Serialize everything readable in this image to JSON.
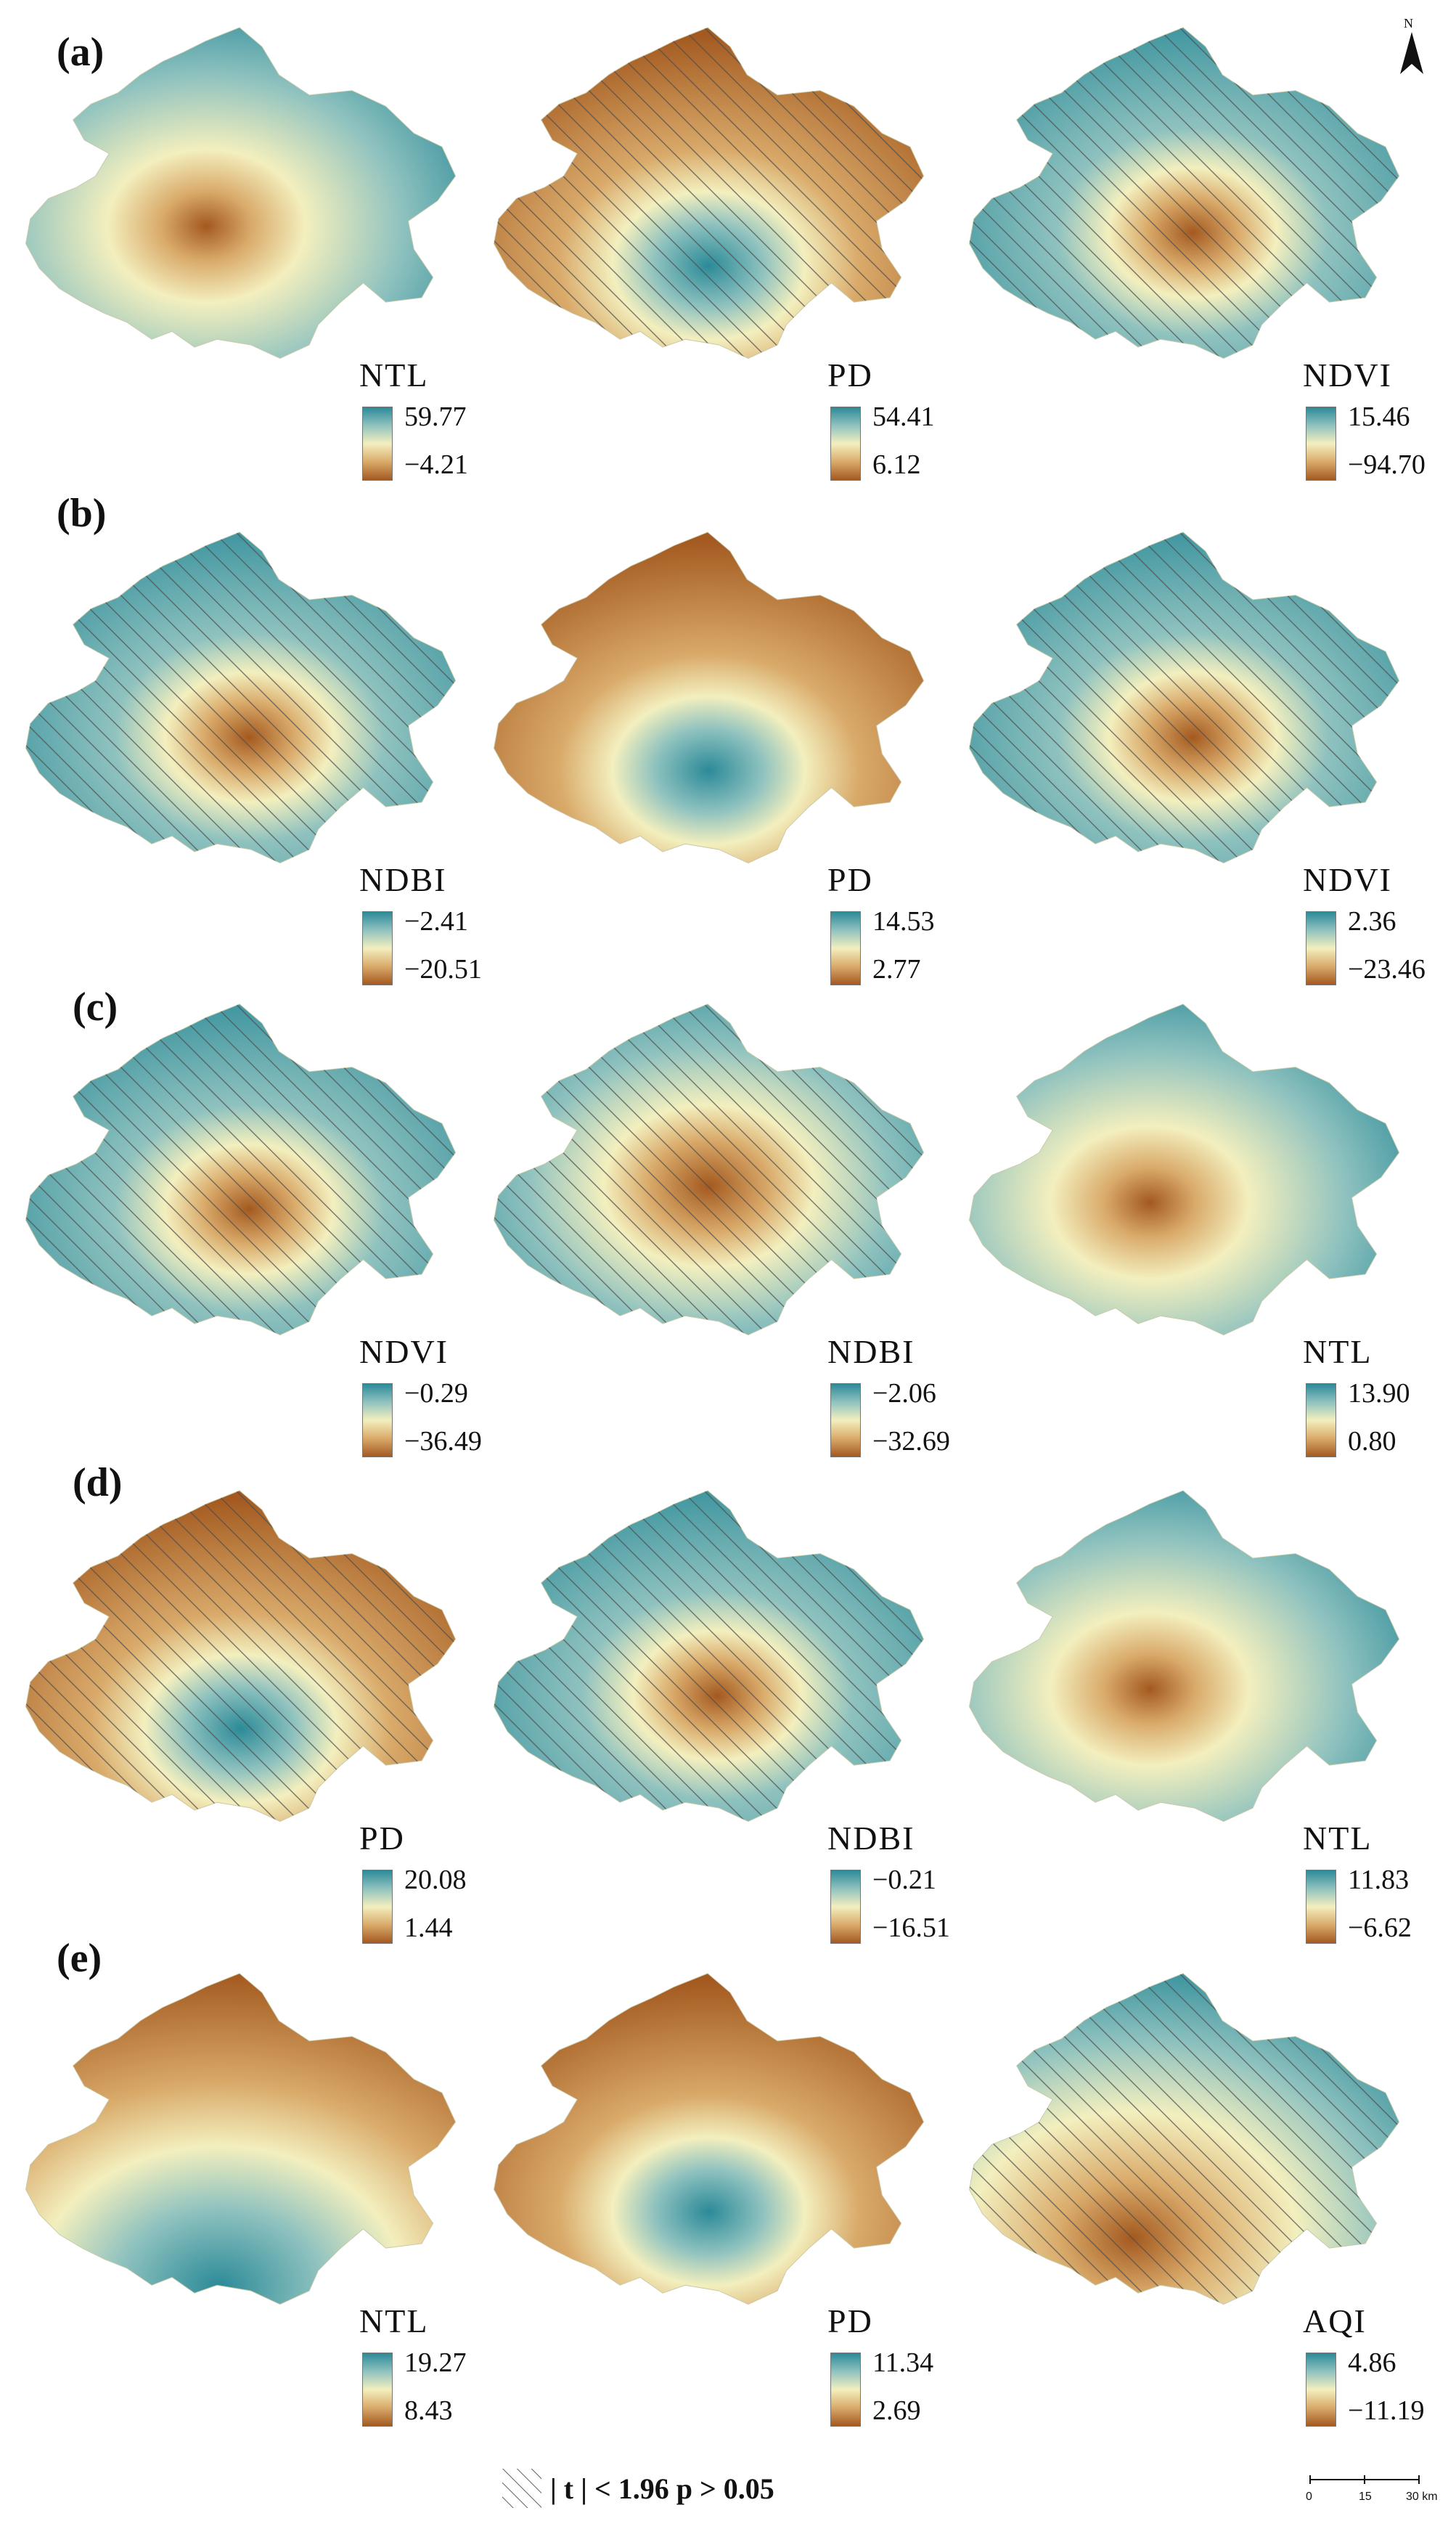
{
  "figure": {
    "rows": [
      {
        "label": "(a)",
        "panels": [
          {
            "variable": "NTL",
            "high": "59.77",
            "low": "−4.21",
            "pattern": "center-low-south-high",
            "hatched": false
          },
          {
            "variable": "PD",
            "high": "54.41",
            "low": "6.12",
            "pattern": "center-high-north-low",
            "hatched": true
          },
          {
            "variable": "NDVI",
            "high": "15.46",
            "low": "−94.70",
            "pattern": "center-low-outer-high",
            "hatched": true
          }
        ]
      },
      {
        "label": "(b)",
        "panels": [
          {
            "variable": "NDBI",
            "high": "−2.41",
            "low": "−20.51",
            "pattern": "center-low-outer-high",
            "hatched": true
          },
          {
            "variable": "PD",
            "high": "14.53",
            "low": "2.77",
            "pattern": "center-high-outer-low",
            "hatched": false
          },
          {
            "variable": "NDVI",
            "high": "2.36",
            "low": "−23.46",
            "pattern": "center-low-outer-high",
            "hatched": true
          }
        ]
      },
      {
        "label": "(c)",
        "panels": [
          {
            "variable": "NDVI",
            "high": "−0.29",
            "low": "−36.49",
            "pattern": "center-low-outer-high",
            "hatched": true
          },
          {
            "variable": "NDBI",
            "high": "−2.06",
            "low": "−32.69",
            "pattern": "center-low-outer-mid",
            "hatched": true
          },
          {
            "variable": "NTL",
            "high": "13.90",
            "low": "0.80",
            "pattern": "center-low-south-high",
            "hatched": false
          }
        ]
      },
      {
        "label": "(d)",
        "panels": [
          {
            "variable": "PD",
            "high": "20.08",
            "low": "1.44",
            "pattern": "center-high-north-low",
            "hatched": true
          },
          {
            "variable": "NDBI",
            "high": "−0.21",
            "low": "−16.51",
            "pattern": "center-low-outer-high",
            "hatched": true
          },
          {
            "variable": "NTL",
            "high": "11.83",
            "low": "−6.62",
            "pattern": "center-low-south-high",
            "hatched": false
          }
        ]
      },
      {
        "label": "(e)",
        "panels": [
          {
            "variable": "NTL",
            "high": "19.27",
            "low": "8.43",
            "pattern": "north-low-south-high",
            "hatched": false
          },
          {
            "variable": "PD",
            "high": "11.34",
            "low": "2.69",
            "pattern": "center-high-north-low",
            "hatched": false
          },
          {
            "variable": "AQI",
            "high": "4.86",
            "low": "−11.19",
            "pattern": "southwest-low-northeast-high",
            "hatched": true
          }
        ]
      }
    ]
  },
  "colors": {
    "high": "#2b8a98",
    "mid_high": "#8fc2bf",
    "mid": "#f3efbe",
    "mid_low": "#d9aa6a",
    "low": "#a3591f",
    "hatch": "#555555"
  },
  "north_arrow": {
    "label": "N",
    "icon": "north-arrow-icon"
  },
  "significance_legend": {
    "text": "| t | < 1.96   p > 0.05",
    "icon": "hatch-swatch-icon"
  },
  "scale_bar": {
    "ticks": [
      "0",
      "15",
      "30 km"
    ]
  }
}
